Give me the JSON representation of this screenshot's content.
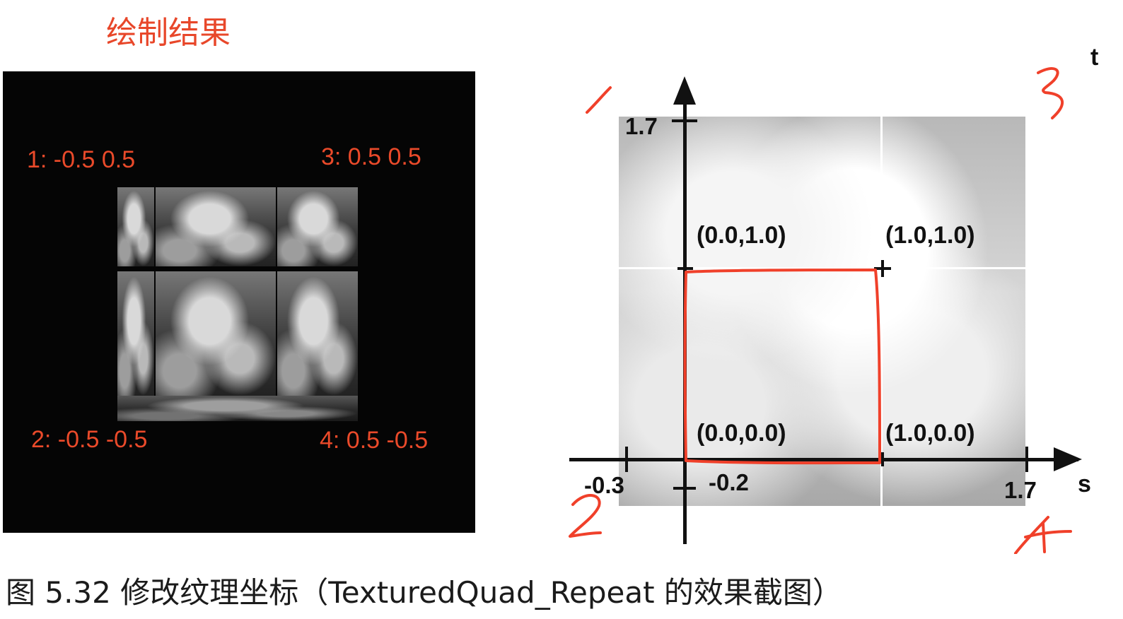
{
  "title": "绘制结果",
  "render_panel": {
    "corners": [
      {
        "index": "1",
        "text": "1:  -0.5 0.5"
      },
      {
        "index": "3",
        "text": "3:  0.5 0.5"
      },
      {
        "index": "2",
        "text": "2:  -0.5 -0.5"
      },
      {
        "index": "4",
        "text": "4:  0.5 -0.5"
      }
    ]
  },
  "texture_diagram": {
    "axis_labels": {
      "vertical": "t",
      "horizontal": "s"
    },
    "tick_labels": {
      "t_max": "1.7",
      "s_min": "-0.3",
      "t_min": "-0.2",
      "s_max": "1.7"
    },
    "points": [
      {
        "label": "(0.0,1.0)"
      },
      {
        "label": "(1.0,1.0)"
      },
      {
        "label": "(0.0,0.0)"
      },
      {
        "label": "(1.0,0.0)"
      }
    ],
    "handwritten_corners": [
      "1",
      "3",
      "2",
      "4"
    ],
    "highlight_color": "#f0402a"
  },
  "caption": "图 5.32  修改纹理坐标（TexturedQuad_Repeat 的效果截图）"
}
